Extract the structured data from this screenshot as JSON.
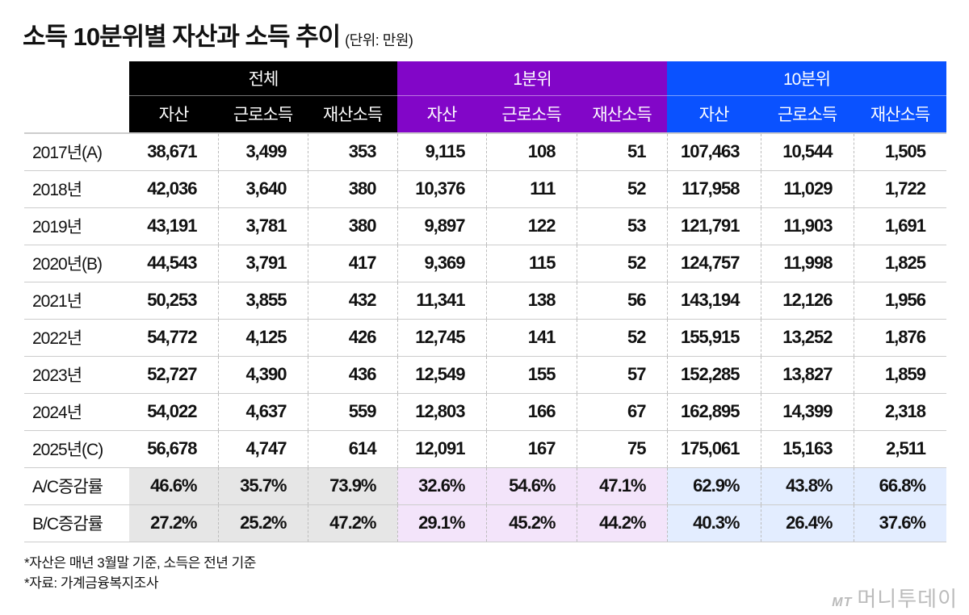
{
  "title": "소득 10분위별 자산과 소득 추이",
  "unit": "(단위: 만원)",
  "colors": {
    "전체": "#000000",
    "1분위": "#8206c8",
    "10분위": "#0a52ff"
  },
  "chart_data": {
    "type": "table",
    "groups": [
      "전체",
      "1분위",
      "10분위"
    ],
    "subcolumns": [
      "자산",
      "근로소득",
      "재산소득"
    ],
    "rows": [
      {
        "label": "2017년(A)",
        "values": [
          "38,671",
          "3,499",
          "353",
          "9,115",
          "108",
          "51",
          "107,463",
          "10,544",
          "1,505"
        ]
      },
      {
        "label": "2018년",
        "values": [
          "42,036",
          "3,640",
          "380",
          "10,376",
          "111",
          "52",
          "117,958",
          "11,029",
          "1,722"
        ]
      },
      {
        "label": "2019년",
        "values": [
          "43,191",
          "3,781",
          "380",
          "9,897",
          "122",
          "53",
          "121,791",
          "11,903",
          "1,691"
        ]
      },
      {
        "label": "2020년(B)",
        "values": [
          "44,543",
          "3,791",
          "417",
          "9,369",
          "115",
          "52",
          "124,757",
          "11,998",
          "1,825"
        ]
      },
      {
        "label": "2021년",
        "values": [
          "50,253",
          "3,855",
          "432",
          "11,341",
          "138",
          "56",
          "143,194",
          "12,126",
          "1,956"
        ]
      },
      {
        "label": "2022년",
        "values": [
          "54,772",
          "4,125",
          "426",
          "12,745",
          "141",
          "52",
          "155,915",
          "13,252",
          "1,876"
        ]
      },
      {
        "label": "2023년",
        "values": [
          "52,727",
          "4,390",
          "436",
          "12,549",
          "155",
          "57",
          "152,285",
          "13,827",
          "1,859"
        ]
      },
      {
        "label": "2024년",
        "values": [
          "54,022",
          "4,637",
          "559",
          "12,803",
          "166",
          "67",
          "162,895",
          "14,399",
          "2,318"
        ]
      },
      {
        "label": "2025년(C)",
        "values": [
          "56,678",
          "4,747",
          "614",
          "12,091",
          "167",
          "75",
          "175,061",
          "15,163",
          "2,511"
        ]
      }
    ],
    "rate_rows": [
      {
        "label": "A/C증감률",
        "values": [
          "46.6%",
          "35.7%",
          "73.9%",
          "32.6%",
          "54.6%",
          "47.1%",
          "62.9%",
          "43.8%",
          "66.8%"
        ]
      },
      {
        "label": "B/C증감률",
        "values": [
          "27.2%",
          "25.2%",
          "47.2%",
          "29.1%",
          "45.2%",
          "44.2%",
          "40.3%",
          "26.4%",
          "37.6%"
        ]
      }
    ]
  },
  "notes": [
    "*자산은 매년 3월말 기준, 소득은 전년 기준",
    "*자료: 가계금융복지조사"
  ],
  "logo": {
    "mark": "MT",
    "name": "머니투데이"
  }
}
